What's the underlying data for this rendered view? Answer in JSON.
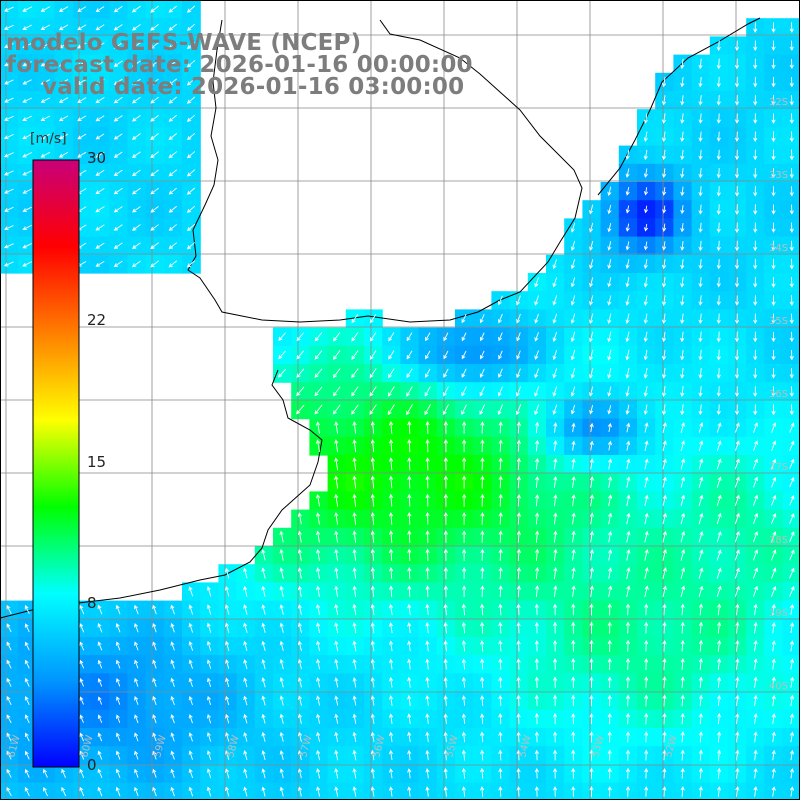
{
  "title": {
    "line1": "modelo GEFS-WAVE (NCEP)",
    "line2": "forecast date: 2026-01-16 00:00:00",
    "line3": "valid date: 2026-01-16 03:00:00"
  },
  "colorbar": {
    "unit": "[m/s]",
    "min": 0,
    "max": 30,
    "ticks": [
      {
        "value": 0,
        "label": "0"
      },
      {
        "value": 8,
        "label": "8"
      },
      {
        "value": 15,
        "label": "15"
      },
      {
        "value": 22,
        "label": "22"
      },
      {
        "value": 30,
        "label": "30"
      }
    ],
    "stops": [
      "#0000ff",
      "#0096ff",
      "#00ffff",
      "#00ff00",
      "#ffff00",
      "#ff7f00",
      "#ff0000",
      "#c8007a"
    ]
  },
  "grid": {
    "lat_labels": [
      "32S",
      "33S",
      "34S",
      "35S",
      "36S",
      "37S",
      "38S",
      "39S",
      "40S"
    ],
    "lon_labels": [
      "61W",
      "60W",
      "59W",
      "58W",
      "57W",
      "56W",
      "55W",
      "54W",
      "53W",
      "52W"
    ]
  },
  "colors": {
    "land": "#ffffff",
    "coast": "#000000",
    "gridline": "#888888",
    "arrow": "#ffffff",
    "title_text": "#7d7d7d"
  }
}
